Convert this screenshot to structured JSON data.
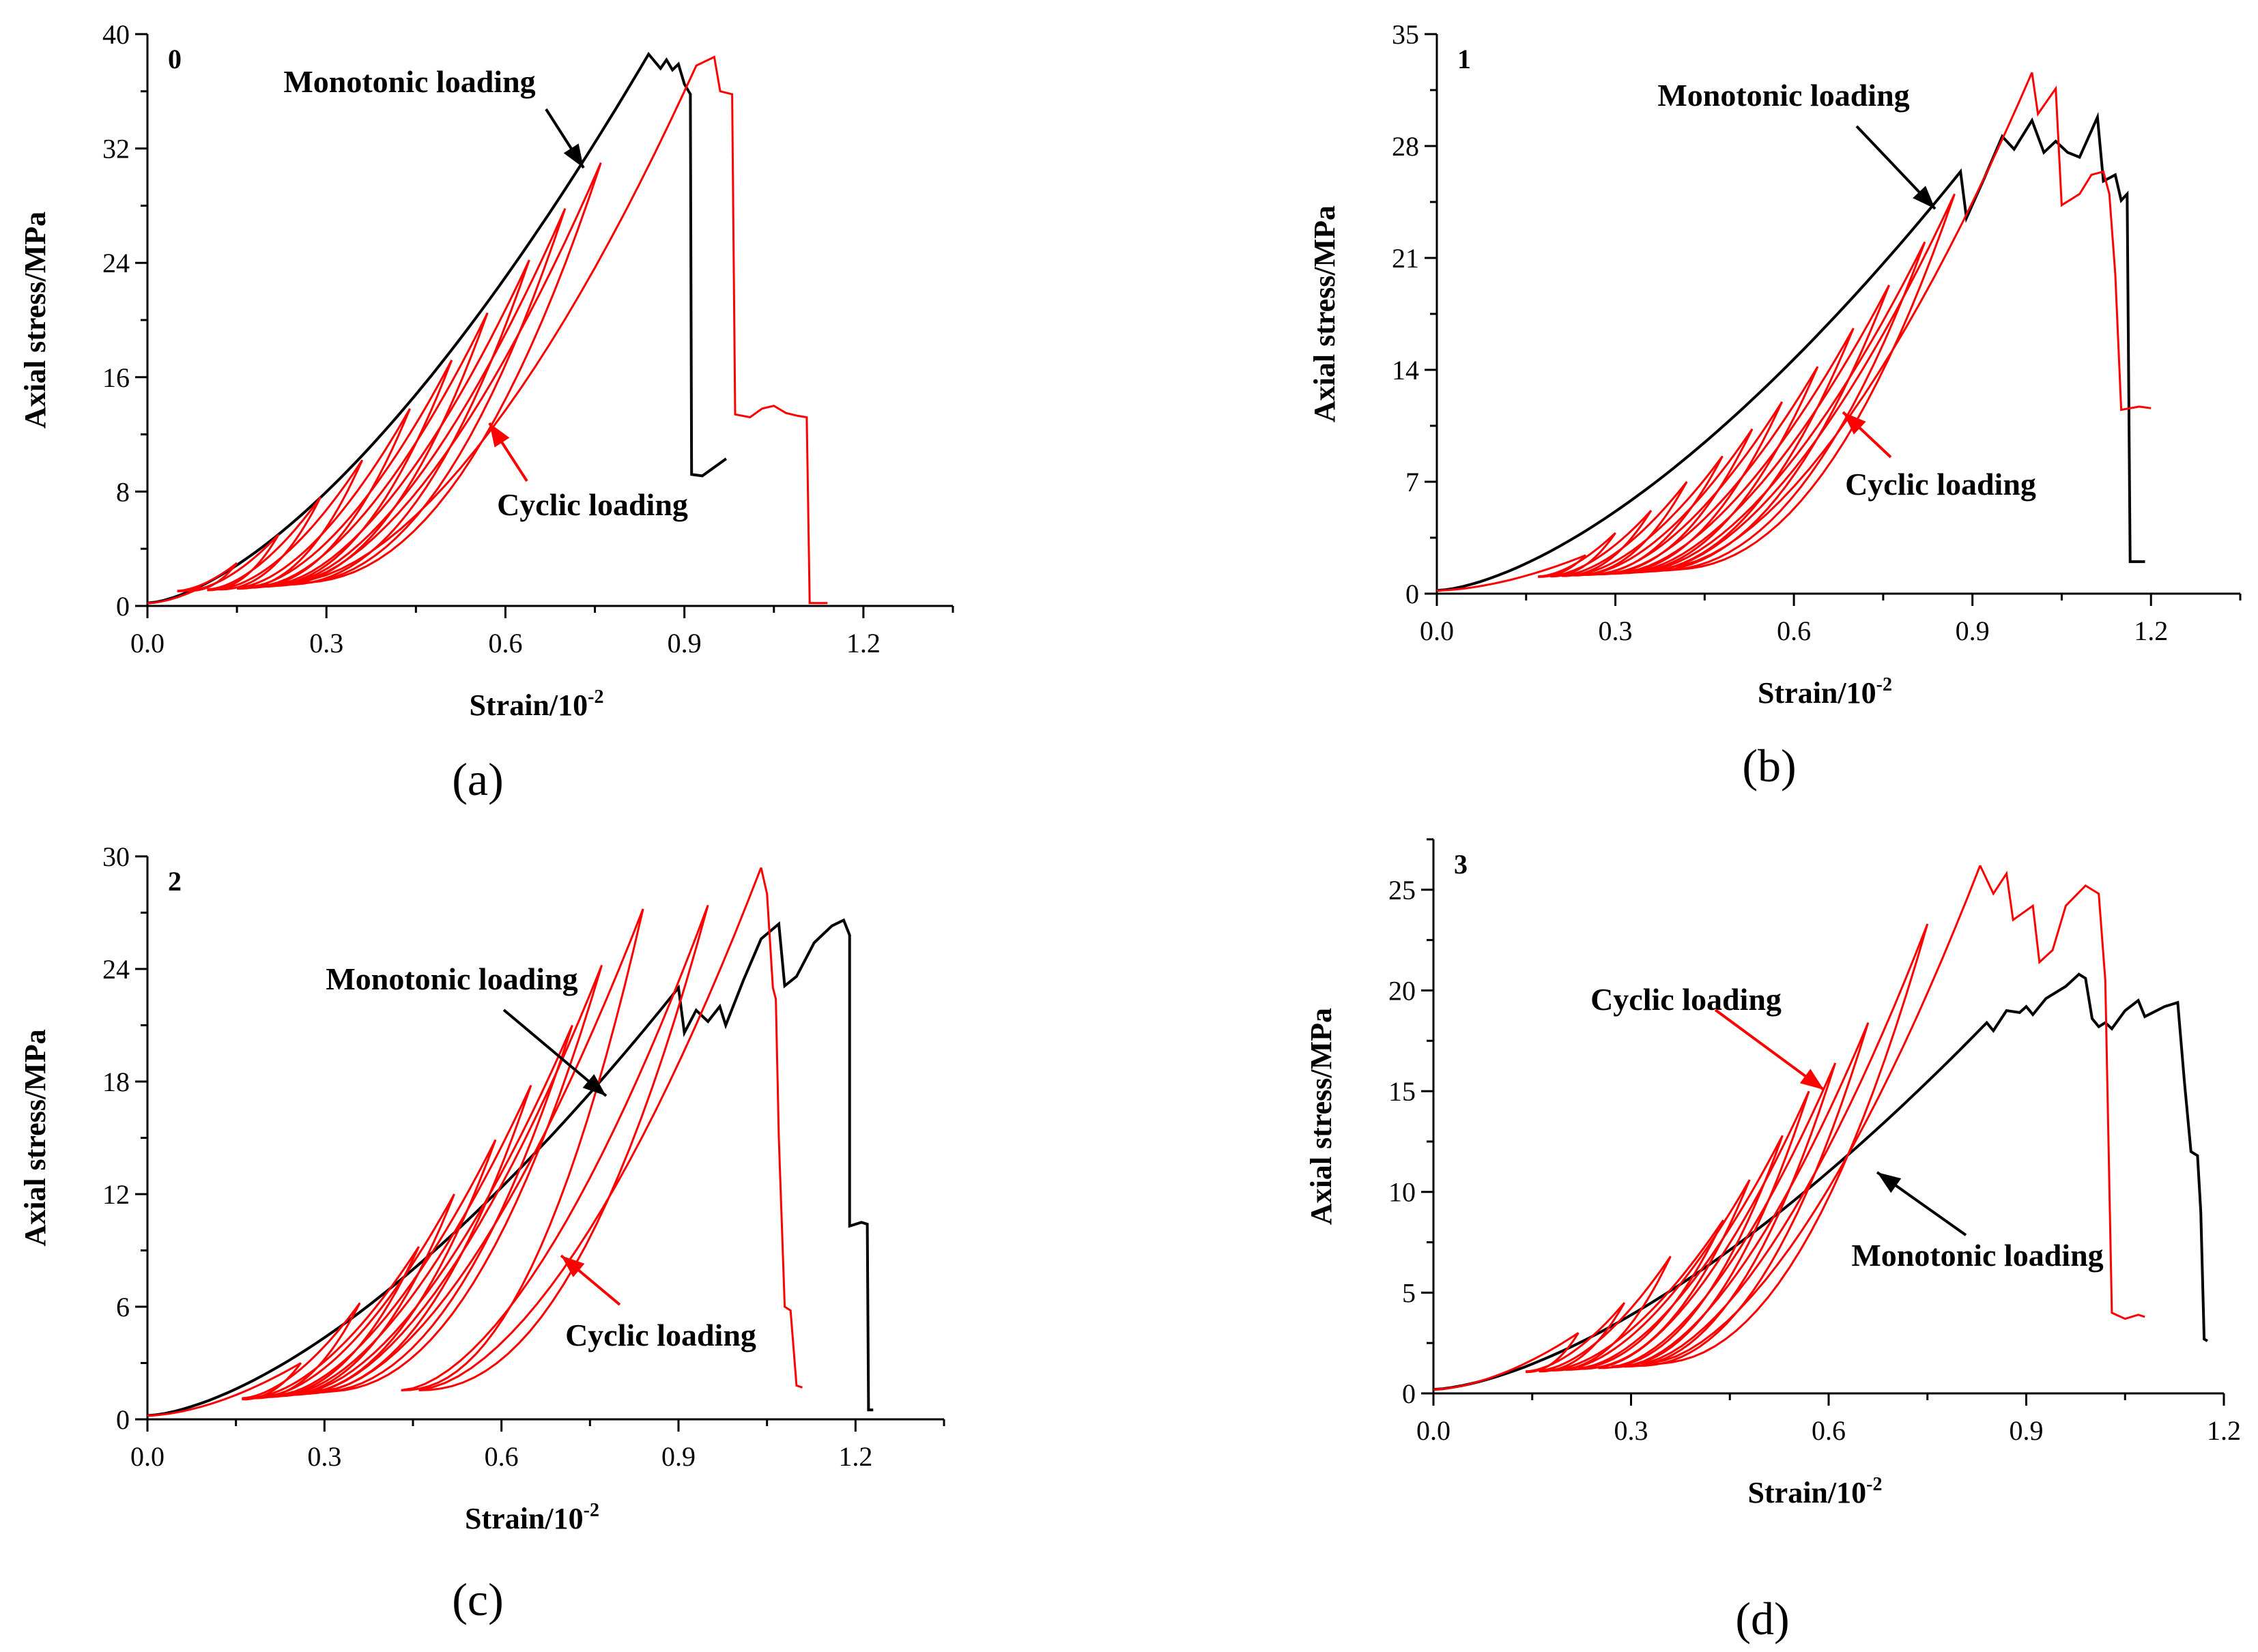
{
  "figure": {
    "series_colors": {
      "Monotonic loading": "#000000",
      "Cyclic loading": "#ff0000"
    }
  },
  "chart_data": [
    {
      "type": "line",
      "panel_label": "(a)",
      "panel_number": "0",
      "xlabel": "Strain/10",
      "xlabel_exponent": "-2",
      "ylabel": "Axial stress/MPa",
      "xlim": [
        0.0,
        1.35
      ],
      "ylim": [
        0,
        40
      ],
      "xticks": [
        "0.0",
        "0.3",
        "0.6",
        "0.9",
        "1.2"
      ],
      "yticks": [
        "0",
        "8",
        "16",
        "24",
        "32",
        "40"
      ],
      "series": [
        {
          "name": "Monotonic loading",
          "color": "#000000",
          "kind": "monotonic",
          "peak": [
            0.84,
            38.6
          ],
          "after_peak": [
            [
              0.86,
              37.6
            ],
            [
              0.87,
              38.2
            ],
            [
              0.88,
              37.5
            ],
            [
              0.89,
              37.9
            ],
            [
              0.9,
              36.5
            ],
            [
              0.91,
              35.8
            ],
            [
              0.912,
              9.2
            ],
            [
              0.93,
              9.1
            ],
            [
              0.97,
              10.3
            ]
          ]
        },
        {
          "name": "Cyclic loading",
          "color": "#ff0000",
          "kind": "cyclic",
          "peaks": [
            [
              0.09,
              1.3
            ],
            [
              0.15,
              3.0
            ],
            [
              0.22,
              5.0
            ],
            [
              0.29,
              7.6
            ],
            [
              0.36,
              10.2
            ],
            [
              0.44,
              13.8
            ],
            [
              0.51,
              17.2
            ],
            [
              0.57,
              20.5
            ],
            [
              0.64,
              24.2
            ],
            [
              0.7,
              27.8
            ],
            [
              0.76,
              31.0
            ],
            [
              0.9,
              36.0
            ]
          ],
          "valleys": [
            0.05,
            0.07,
            0.1,
            0.12,
            0.15,
            0.17,
            0.19,
            0.21,
            0.23,
            0.24,
            0.25
          ],
          "post_peak": [
            [
              0.92,
              37.8
            ],
            [
              0.95,
              38.4
            ],
            [
              0.96,
              36.0
            ],
            [
              0.98,
              35.8
            ],
            [
              0.985,
              13.4
            ],
            [
              1.01,
              13.2
            ],
            [
              1.03,
              13.8
            ],
            [
              1.05,
              14.0
            ],
            [
              1.07,
              13.5
            ],
            [
              1.09,
              13.3
            ],
            [
              1.105,
              13.2
            ],
            [
              1.11,
              0.2
            ],
            [
              1.14,
              0.2
            ]
          ]
        }
      ],
      "annotations": [
        {
          "text": "Monotonic loading",
          "color": "#000000"
        },
        {
          "text": "Cyclic loading",
          "color": "#ff0000"
        }
      ]
    },
    {
      "type": "line",
      "panel_label": "(b)",
      "panel_number": "1",
      "xlabel": "Strain/10",
      "xlabel_exponent": "-2",
      "ylabel": "Axial stress/MPa",
      "xlim": [
        0.0,
        1.35
      ],
      "ylim": [
        0,
        35
      ],
      "xticks": [
        "0.0",
        "0.3",
        "0.6",
        "0.9",
        "1.2"
      ],
      "yticks": [
        "0",
        "7",
        "14",
        "21",
        "28",
        "35"
      ],
      "series": [
        {
          "name": "Monotonic loading",
          "color": "#000000",
          "kind": "monotonic",
          "peak": [
            0.88,
            26.4
          ],
          "after_peak": [
            [
              0.89,
              23.5
            ],
            [
              0.92,
              26.0
            ],
            [
              0.95,
              28.6
            ],
            [
              0.97,
              27.8
            ],
            [
              1.0,
              29.6
            ],
            [
              1.02,
              27.6
            ],
            [
              1.04,
              28.3
            ],
            [
              1.06,
              27.6
            ],
            [
              1.08,
              27.3
            ],
            [
              1.11,
              29.8
            ],
            [
              1.12,
              25.8
            ],
            [
              1.14,
              26.2
            ],
            [
              1.15,
              24.6
            ],
            [
              1.16,
              25.0
            ],
            [
              1.165,
              2.0
            ],
            [
              1.19,
              2.0
            ]
          ]
        },
        {
          "name": "Cyclic loading",
          "color": "#ff0000",
          "kind": "cyclic",
          "peaks": [
            [
              0.25,
              2.4
            ],
            [
              0.3,
              3.8
            ],
            [
              0.36,
              5.2
            ],
            [
              0.42,
              7.0
            ],
            [
              0.48,
              8.6
            ],
            [
              0.53,
              10.3
            ],
            [
              0.58,
              12.0
            ],
            [
              0.64,
              14.2
            ],
            [
              0.7,
              16.6
            ],
            [
              0.76,
              19.3
            ],
            [
              0.82,
              22.0
            ],
            [
              0.87,
              25.0
            ],
            [
              1.0,
              32.6
            ]
          ],
          "valleys": [
            0.17,
            0.19,
            0.21,
            0.23,
            0.25,
            0.27,
            0.29,
            0.31,
            0.33,
            0.35,
            0.37,
            0.39
          ],
          "post_peak": [
            [
              1.01,
              30.0
            ],
            [
              1.04,
              31.6
            ],
            [
              1.05,
              24.3
            ],
            [
              1.08,
              25.0
            ],
            [
              1.1,
              26.2
            ],
            [
              1.12,
              26.4
            ],
            [
              1.13,
              25.0
            ],
            [
              1.14,
              20.0
            ],
            [
              1.15,
              11.5
            ],
            [
              1.18,
              11.7
            ],
            [
              1.2,
              11.6
            ]
          ]
        }
      ],
      "annotations": [
        {
          "text": "Monotonic loading",
          "color": "#000000"
        },
        {
          "text": "Cyclic loading",
          "color": "#ff0000"
        }
      ]
    },
    {
      "type": "line",
      "panel_label": "(c)",
      "panel_number": "2",
      "xlabel": "Strain/10",
      "xlabel_exponent": "-2",
      "ylabel": "Axial stress/MPa",
      "xlim": [
        0.0,
        1.35
      ],
      "ylim": [
        0,
        30
      ],
      "xticks": [
        "0.0",
        "0.3",
        "0.6",
        "0.9",
        "1.2"
      ],
      "yticks": [
        "0",
        "6",
        "12",
        "18",
        "24",
        "30"
      ],
      "series": [
        {
          "name": "Monotonic loading",
          "color": "#000000",
          "kind": "monotonic",
          "peak": [
            0.9,
            23.0
          ],
          "after_peak": [
            [
              0.91,
              20.6
            ],
            [
              0.93,
              21.8
            ],
            [
              0.95,
              21.2
            ],
            [
              0.97,
              22.0
            ],
            [
              0.98,
              21.0
            ],
            [
              1.01,
              23.4
            ],
            [
              1.04,
              25.6
            ],
            [
              1.07,
              26.4
            ],
            [
              1.08,
              23.1
            ],
            [
              1.1,
              23.6
            ],
            [
              1.13,
              25.4
            ],
            [
              1.16,
              26.3
            ],
            [
              1.18,
              26.6
            ],
            [
              1.19,
              25.8
            ],
            [
              1.19,
              10.3
            ],
            [
              1.21,
              10.5
            ],
            [
              1.22,
              10.4
            ],
            [
              1.222,
              0.5
            ],
            [
              1.23,
              0.5
            ]
          ]
        },
        {
          "name": "Cyclic loading",
          "color": "#ff0000",
          "kind": "cyclic",
          "peaks": [
            [
              0.26,
              3.0
            ],
            [
              0.36,
              6.2
            ],
            [
              0.46,
              9.2
            ],
            [
              0.52,
              12.0
            ],
            [
              0.59,
              14.9
            ],
            [
              0.65,
              17.8
            ],
            [
              0.72,
              21.0
            ],
            [
              0.77,
              24.2
            ],
            [
              0.84,
              27.2
            ],
            [
              0.95,
              27.4
            ],
            [
              1.04,
              29.4
            ]
          ],
          "valleys": [
            0.16,
            0.18,
            0.2,
            0.22,
            0.24,
            0.26,
            0.28,
            0.3,
            0.43,
            0.46
          ],
          "post_peak": [
            [
              1.05,
              28.0
            ],
            [
              1.06,
              23.0
            ],
            [
              1.065,
              22.4
            ],
            [
              1.07,
              15.0
            ],
            [
              1.08,
              6.0
            ],
            [
              1.09,
              5.8
            ],
            [
              1.1,
              1.8
            ],
            [
              1.11,
              1.7
            ]
          ]
        }
      ],
      "annotations": [
        {
          "text": "Monotonic loading",
          "color": "#000000"
        },
        {
          "text": "Cyclic loading",
          "color": "#ff0000"
        }
      ]
    },
    {
      "type": "line",
      "panel_label": "(d)",
      "panel_number": "3",
      "xlabel": "Strain/10",
      "xlabel_exponent": "-2",
      "ylabel": "Axial stress/MPa",
      "xlim": [
        0.0,
        1.2
      ],
      "ylim": [
        0,
        27.5
      ],
      "xticks": [
        "0.0",
        "0.3",
        "0.6",
        "0.9",
        "1.2"
      ],
      "yticks": [
        "0",
        "5",
        "10",
        "15",
        "20",
        "25"
      ],
      "series": [
        {
          "name": "Monotonic loading",
          "color": "#000000",
          "kind": "monotonic",
          "peak": [
            0.84,
            18.4
          ],
          "after_peak": [
            [
              0.85,
              18.0
            ],
            [
              0.87,
              19.0
            ],
            [
              0.89,
              18.9
            ],
            [
              0.9,
              19.2
            ],
            [
              0.91,
              18.8
            ],
            [
              0.93,
              19.6
            ],
            [
              0.96,
              20.2
            ],
            [
              0.98,
              20.8
            ],
            [
              0.99,
              20.6
            ],
            [
              1.0,
              18.6
            ],
            [
              1.01,
              18.2
            ],
            [
              1.02,
              18.4
            ],
            [
              1.03,
              18.1
            ],
            [
              1.05,
              19.0
            ],
            [
              1.07,
              19.5
            ],
            [
              1.08,
              18.7
            ],
            [
              1.11,
              19.2
            ],
            [
              1.13,
              19.4
            ],
            [
              1.14,
              15.5
            ],
            [
              1.15,
              12.0
            ],
            [
              1.16,
              11.8
            ],
            [
              1.165,
              9.0
            ],
            [
              1.17,
              2.7
            ],
            [
              1.175,
              2.6
            ]
          ]
        },
        {
          "name": "Cyclic loading",
          "color": "#ff0000",
          "kind": "cyclic",
          "peaks": [
            [
              0.22,
              3.0
            ],
            [
              0.29,
              4.5
            ],
            [
              0.36,
              6.8
            ],
            [
              0.44,
              8.6
            ],
            [
              0.48,
              10.6
            ],
            [
              0.53,
              12.8
            ],
            [
              0.57,
              15.0
            ],
            [
              0.61,
              16.4
            ],
            [
              0.66,
              18.4
            ],
            [
              0.75,
              23.3
            ],
            [
              0.83,
              26.2
            ]
          ],
          "valleys": [
            0.14,
            0.16,
            0.18,
            0.2,
            0.22,
            0.25,
            0.27,
            0.29,
            0.31,
            0.33
          ],
          "post_peak": [
            [
              0.85,
              24.8
            ],
            [
              0.87,
              25.8
            ],
            [
              0.88,
              23.5
            ],
            [
              0.91,
              24.2
            ],
            [
              0.92,
              21.4
            ],
            [
              0.94,
              22.0
            ],
            [
              0.96,
              24.2
            ],
            [
              0.99,
              25.2
            ],
            [
              1.01,
              24.8
            ],
            [
              1.02,
              20.5
            ],
            [
              1.03,
              4.0
            ],
            [
              1.05,
              3.7
            ],
            [
              1.07,
              3.9
            ],
            [
              1.08,
              3.8
            ]
          ]
        }
      ],
      "annotations": [
        {
          "text": "Cyclic loading",
          "color": "#ff0000"
        },
        {
          "text": "Monotonic loading",
          "color": "#000000"
        }
      ]
    }
  ]
}
